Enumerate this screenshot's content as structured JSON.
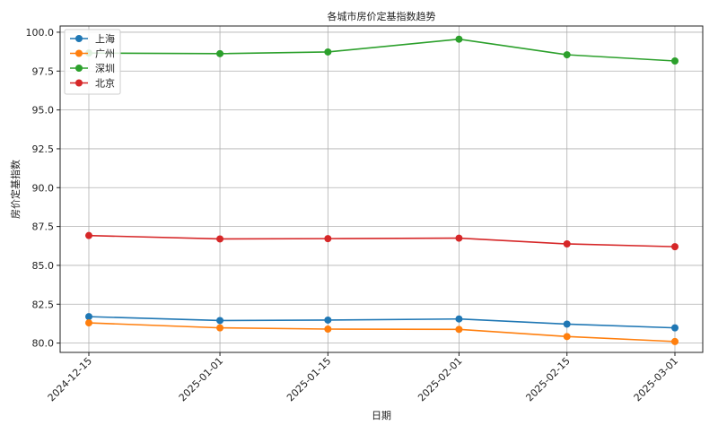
{
  "chart_data": {
    "type": "line",
    "title": "各城市房价定基指数趋势",
    "xlabel": "日期",
    "ylabel": "房价定基指数",
    "x": [
      "2024-12-15",
      "2025-01-01",
      "2025-01-15",
      "2025-02-01",
      "2025-02-15",
      "2025-03-01"
    ],
    "x_tick_labels": [
      "2024-12-15",
      "2025-01-01",
      "2025-01-15",
      "2025-02-01",
      "2025-02-15",
      "2025-03-01"
    ],
    "ylim": [
      79.4,
      100.4
    ],
    "y_ticks": [
      80.0,
      82.5,
      85.0,
      87.5,
      90.0,
      92.5,
      95.0,
      97.5,
      100.0
    ],
    "y_tick_labels": [
      "80.0",
      "82.5",
      "85.0",
      "87.5",
      "90.0",
      "92.5",
      "95.0",
      "97.5",
      "100.0"
    ],
    "grid": true,
    "legend_position": "top-left",
    "series": [
      {
        "name": "上海",
        "color": "#1f77b4",
        "values": [
          81.7,
          81.45,
          81.48,
          81.55,
          81.22,
          80.98
        ]
      },
      {
        "name": "广州",
        "color": "#ff7f0e",
        "values": [
          81.3,
          80.98,
          80.9,
          80.88,
          80.42,
          80.1
        ]
      },
      {
        "name": "深圳",
        "color": "#2ca02c",
        "values": [
          98.66,
          98.62,
          98.73,
          99.55,
          98.55,
          98.15
        ]
      },
      {
        "name": "北京",
        "color": "#d62728",
        "values": [
          86.92,
          86.7,
          86.72,
          86.75,
          86.38,
          86.2
        ]
      }
    ]
  }
}
